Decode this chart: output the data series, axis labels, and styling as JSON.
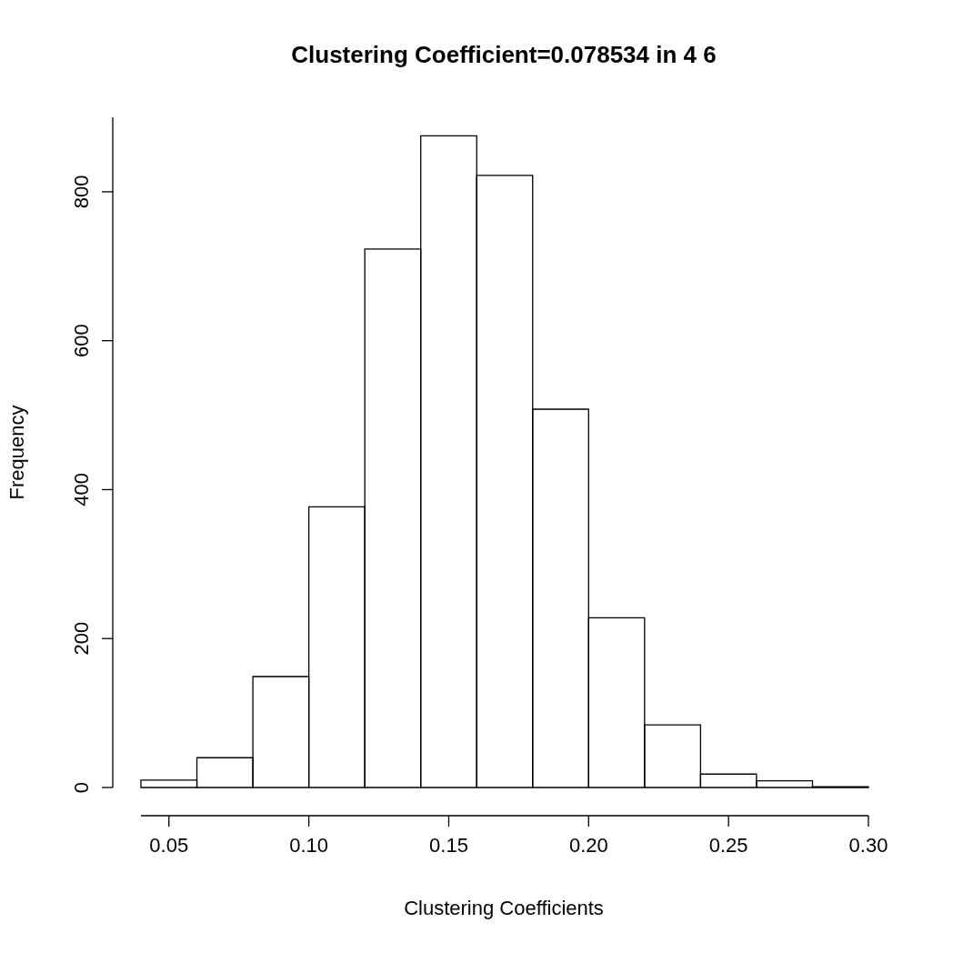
{
  "chart_data": {
    "type": "histogram",
    "title": "Clustering Coefficient=0.078534 in 4 6",
    "xlabel": "Clustering Coefficients",
    "ylabel": "Frequency",
    "bins": [
      0.04,
      0.06,
      0.08,
      0.1,
      0.12,
      0.14,
      0.16,
      0.18,
      0.2,
      0.22,
      0.24,
      0.26,
      0.28,
      0.3
    ],
    "values": [
      10,
      40,
      149,
      377,
      723,
      875,
      822,
      508,
      228,
      84,
      18,
      9,
      1
    ],
    "color": "#000000",
    "xlim": [
      0.04,
      0.3
    ],
    "xticks": [
      {
        "value": 0.05,
        "label": "0.05"
      },
      {
        "value": 0.1,
        "label": "0.10"
      },
      {
        "value": 0.15,
        "label": "0.15"
      },
      {
        "value": 0.2,
        "label": "0.20"
      },
      {
        "value": 0.25,
        "label": "0.25"
      },
      {
        "value": 0.3,
        "label": "0.30"
      }
    ],
    "ylim": [
      0,
      900
    ],
    "yticks": [
      0,
      200,
      400,
      600,
      800
    ],
    "grid": false,
    "legend": false
  }
}
